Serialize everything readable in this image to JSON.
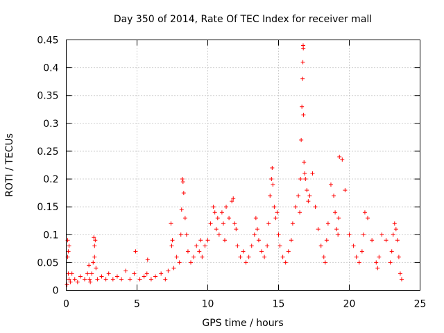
{
  "chart_data": {
    "type": "scatter",
    "title": "Day 350 of 2014, Rate Of TEC Index for receiver mall",
    "xlabel": "GPS time / hours",
    "ylabel": "ROTI / TECUs",
    "xlim": [
      0,
      25
    ],
    "ylim": [
      0,
      0.45
    ],
    "xticks": [
      0,
      5,
      10,
      15,
      20,
      25
    ],
    "xtick_labels": [
      "0",
      "5",
      "10",
      "15",
      "20",
      "25"
    ],
    "yticks": [
      0,
      0.05,
      0.1,
      0.15,
      0.2,
      0.25,
      0.3,
      0.35,
      0.4,
      0.45
    ],
    "ytick_labels": [
      "0",
      "0.05",
      "0.1",
      "0.15",
      "0.2",
      "0.25",
      "0.3",
      "0.35",
      "0.4",
      "0.45"
    ],
    "grid": true,
    "marker": "+",
    "color": "#ff0000",
    "series": [
      {
        "name": "ROTI",
        "x": [
          0.05,
          0.1,
          0.1,
          0.15,
          0.15,
          0.2,
          0.2,
          0.3,
          0.4,
          0.6,
          0.8,
          1.0,
          1.3,
          1.5,
          1.6,
          1.65,
          1.7,
          1.8,
          1.9,
          1.95,
          2.0,
          2.0,
          2.05,
          2.1,
          2.2,
          2.5,
          2.8,
          3.0,
          3.3,
          3.6,
          3.9,
          4.2,
          4.5,
          4.8,
          4.9,
          5.2,
          5.5,
          5.7,
          5.75,
          6.0,
          6.3,
          6.7,
          7.0,
          7.2,
          7.4,
          7.45,
          7.5,
          7.6,
          7.8,
          8.0,
          8.1,
          8.15,
          8.2,
          8.25,
          8.3,
          8.4,
          8.5,
          8.6,
          8.8,
          9.0,
          9.2,
          9.4,
          9.5,
          9.6,
          9.8,
          10.0,
          10.2,
          10.4,
          10.5,
          10.6,
          10.7,
          10.8,
          11.0,
          11.1,
          11.2,
          11.3,
          11.5,
          11.7,
          11.8,
          11.9,
          12.0,
          12.1,
          12.3,
          12.5,
          12.7,
          12.9,
          13.1,
          13.3,
          13.4,
          13.5,
          13.6,
          13.8,
          14.0,
          14.2,
          14.3,
          14.4,
          14.5,
          14.55,
          14.6,
          14.7,
          14.8,
          14.9,
          15.0,
          15.1,
          15.3,
          15.5,
          15.7,
          15.9,
          16.0,
          16.2,
          16.4,
          16.5,
          16.55,
          16.6,
          16.65,
          16.7,
          16.72,
          16.74,
          16.75,
          16.76,
          16.8,
          16.85,
          16.9,
          17.0,
          17.1,
          17.2,
          17.4,
          17.6,
          17.8,
          18.0,
          18.2,
          18.3,
          18.4,
          18.5,
          18.7,
          18.9,
          19.0,
          19.1,
          19.2,
          19.25,
          19.3,
          19.5,
          19.7,
          20.0,
          20.3,
          20.5,
          20.7,
          20.9,
          21.0,
          21.1,
          21.3,
          21.6,
          21.9,
          22.0,
          22.1,
          22.3,
          22.6,
          22.9,
          23.0,
          23.1,
          23.2,
          23.3,
          23.4,
          23.5,
          23.6,
          23.7
        ],
        "y": [
          0.01,
          0.09,
          0.06,
          0.07,
          0.03,
          0.08,
          0.02,
          0.015,
          0.03,
          0.02,
          0.015,
          0.025,
          0.02,
          0.03,
          0.045,
          0.02,
          0.015,
          0.03,
          0.05,
          0.095,
          0.08,
          0.06,
          0.09,
          0.04,
          0.02,
          0.025,
          0.02,
          0.03,
          0.02,
          0.025,
          0.02,
          0.035,
          0.02,
          0.03,
          0.07,
          0.02,
          0.025,
          0.03,
          0.055,
          0.02,
          0.025,
          0.03,
          0.02,
          0.035,
          0.12,
          0.08,
          0.09,
          0.04,
          0.06,
          0.05,
          0.1,
          0.145,
          0.2,
          0.195,
          0.175,
          0.13,
          0.1,
          0.07,
          0.05,
          0.06,
          0.08,
          0.07,
          0.09,
          0.06,
          0.08,
          0.09,
          0.12,
          0.15,
          0.14,
          0.11,
          0.13,
          0.1,
          0.14,
          0.12,
          0.09,
          0.15,
          0.13,
          0.16,
          0.165,
          0.12,
          0.11,
          0.08,
          0.06,
          0.07,
          0.05,
          0.06,
          0.08,
          0.1,
          0.13,
          0.11,
          0.09,
          0.07,
          0.06,
          0.08,
          0.12,
          0.17,
          0.2,
          0.22,
          0.19,
          0.15,
          0.13,
          0.14,
          0.1,
          0.08,
          0.06,
          0.05,
          0.07,
          0.09,
          0.12,
          0.15,
          0.17,
          0.14,
          0.2,
          0.27,
          0.33,
          0.38,
          0.41,
          0.44,
          0.435,
          0.315,
          0.23,
          0.21,
          0.2,
          0.18,
          0.16,
          0.17,
          0.21,
          0.15,
          0.11,
          0.08,
          0.06,
          0.05,
          0.09,
          0.12,
          0.19,
          0.17,
          0.14,
          0.11,
          0.1,
          0.13,
          0.24,
          0.235,
          0.18,
          0.1,
          0.08,
          0.06,
          0.05,
          0.07,
          0.1,
          0.14,
          0.13,
          0.09,
          0.05,
          0.04,
          0.06,
          0.1,
          0.09,
          0.05,
          0.07,
          0.1,
          0.12,
          0.11,
          0.09,
          0.06,
          0.03,
          0.02
        ]
      }
    ]
  }
}
